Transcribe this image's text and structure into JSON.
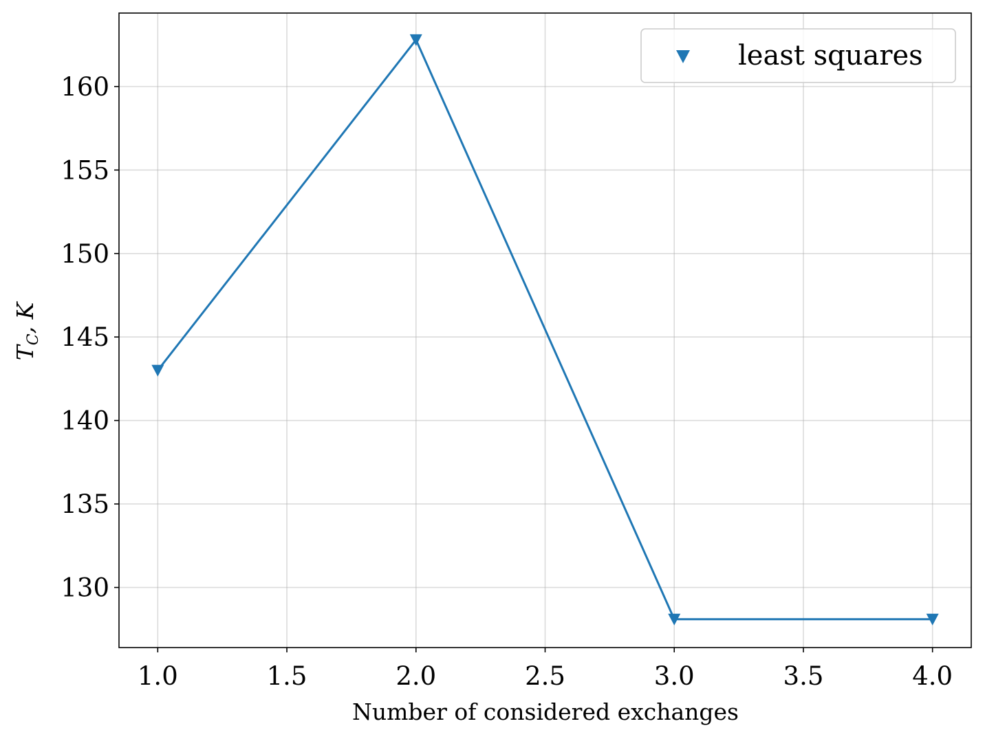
{
  "chart_data": {
    "type": "line",
    "title": "",
    "xlabel": "Number of considered exchanges",
    "ylabel_main": "T",
    "ylabel_sub": "C",
    "ylabel_tail": ", K",
    "xlim": [
      0.85,
      4.15
    ],
    "ylim": [
      126.4,
      164.4
    ],
    "x_ticks": [
      1.0,
      1.5,
      2.0,
      2.5,
      3.0,
      3.5,
      4.0
    ],
    "x_tick_labels": [
      "1.0",
      "1.5",
      "2.0",
      "2.5",
      "3.0",
      "3.5",
      "4.0"
    ],
    "y_ticks": [
      130,
      135,
      140,
      145,
      150,
      155,
      160
    ],
    "y_tick_labels": [
      "130",
      "135",
      "140",
      "145",
      "150",
      "155",
      "160"
    ],
    "grid": true,
    "legend_position": "top-right",
    "series": [
      {
        "name": "least squares",
        "marker": "triangle-down",
        "color": "#1f77b4",
        "x": [
          1,
          2,
          3,
          4
        ],
        "y": [
          143,
          162.8,
          128.1,
          128.1
        ]
      }
    ]
  }
}
